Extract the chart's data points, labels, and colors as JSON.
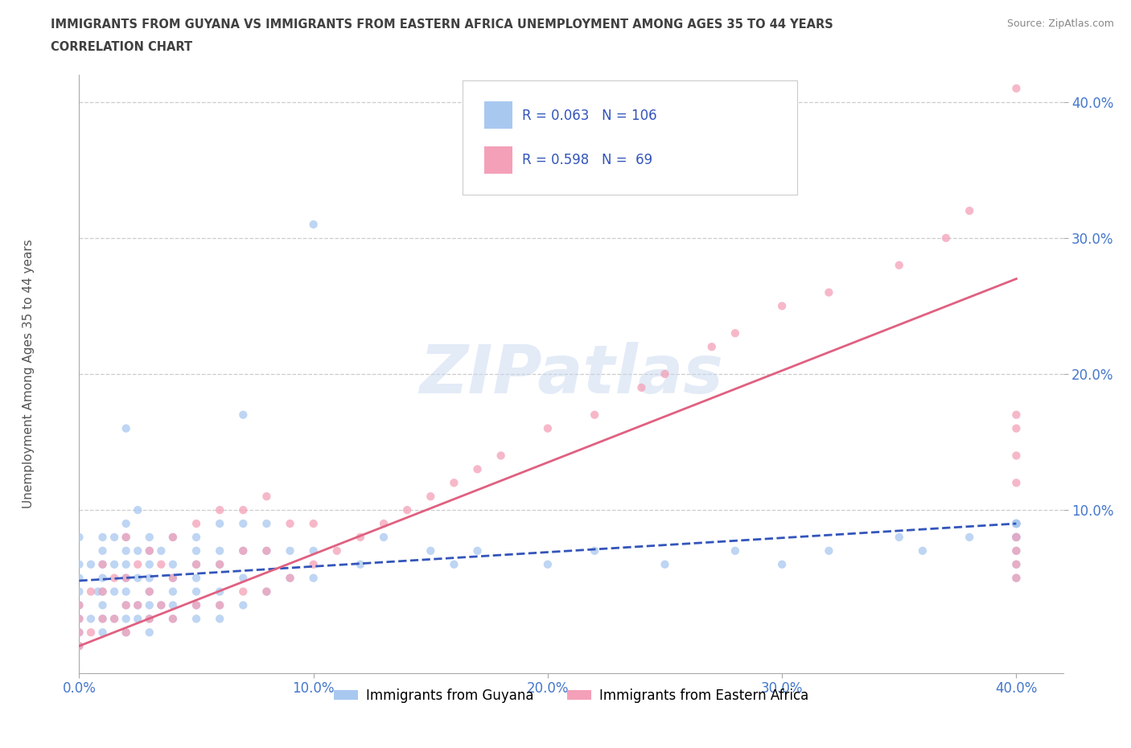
{
  "title_line1": "IMMIGRANTS FROM GUYANA VS IMMIGRANTS FROM EASTERN AFRICA UNEMPLOYMENT AMONG AGES 35 TO 44 YEARS",
  "title_line2": "CORRELATION CHART",
  "source_text": "Source: ZipAtlas.com",
  "watermark_text": "ZIPatlas",
  "ylabel": "Unemployment Among Ages 35 to 44 years",
  "xlim": [
    0.0,
    0.42
  ],
  "ylim": [
    -0.02,
    0.42
  ],
  "guyana_R": 0.063,
  "guyana_N": 106,
  "eastern_africa_R": 0.598,
  "eastern_africa_N": 69,
  "guyana_color": "#a8c8f0",
  "eastern_africa_color": "#f4a0b8",
  "guyana_line_color": "#3355bb",
  "eastern_africa_line_color": "#e06080",
  "background_color": "#ffffff",
  "title_color": "#404040",
  "tick_color": "#4477cc",
  "legend_label_guyana": "Immigrants from Guyana",
  "legend_label_eastern_africa": "Immigrants from Eastern Africa",
  "guyana_line_y0": 0.048,
  "guyana_line_y1": 0.09,
  "eastern_africa_line_y0": 0.0,
  "eastern_africa_line_y1": 0.27,
  "guyana_x": [
    0.0,
    0.0,
    0.0,
    0.0,
    0.0,
    0.0,
    0.0,
    0.0,
    0.005,
    0.005,
    0.008,
    0.01,
    0.01,
    0.01,
    0.01,
    0.01,
    0.01,
    0.01,
    0.01,
    0.015,
    0.015,
    0.015,
    0.015,
    0.02,
    0.02,
    0.02,
    0.02,
    0.02,
    0.02,
    0.02,
    0.02,
    0.02,
    0.02,
    0.025,
    0.025,
    0.025,
    0.025,
    0.025,
    0.03,
    0.03,
    0.03,
    0.03,
    0.03,
    0.03,
    0.03,
    0.03,
    0.035,
    0.035,
    0.04,
    0.04,
    0.04,
    0.04,
    0.04,
    0.04,
    0.05,
    0.05,
    0.05,
    0.05,
    0.05,
    0.05,
    0.05,
    0.06,
    0.06,
    0.06,
    0.06,
    0.06,
    0.06,
    0.07,
    0.07,
    0.07,
    0.07,
    0.07,
    0.08,
    0.08,
    0.08,
    0.09,
    0.09,
    0.1,
    0.1,
    0.1,
    0.12,
    0.13,
    0.15,
    0.16,
    0.17,
    0.2,
    0.22,
    0.25,
    0.28,
    0.3,
    0.32,
    0.35,
    0.36,
    0.38,
    0.4,
    0.4,
    0.4,
    0.4,
    0.4,
    0.4,
    0.4,
    0.4,
    0.4,
    0.4,
    0.4,
    0.4
  ],
  "guyana_y": [
    0.0,
    0.01,
    0.02,
    0.03,
    0.04,
    0.05,
    0.06,
    0.08,
    0.02,
    0.06,
    0.04,
    0.01,
    0.02,
    0.03,
    0.04,
    0.05,
    0.06,
    0.07,
    0.08,
    0.02,
    0.04,
    0.06,
    0.08,
    0.01,
    0.02,
    0.03,
    0.04,
    0.05,
    0.06,
    0.07,
    0.08,
    0.09,
    0.16,
    0.02,
    0.03,
    0.05,
    0.07,
    0.1,
    0.01,
    0.02,
    0.03,
    0.04,
    0.05,
    0.06,
    0.07,
    0.08,
    0.03,
    0.07,
    0.02,
    0.03,
    0.04,
    0.05,
    0.06,
    0.08,
    0.02,
    0.03,
    0.04,
    0.05,
    0.06,
    0.07,
    0.08,
    0.02,
    0.03,
    0.04,
    0.06,
    0.07,
    0.09,
    0.03,
    0.05,
    0.07,
    0.09,
    0.17,
    0.04,
    0.07,
    0.09,
    0.05,
    0.07,
    0.05,
    0.07,
    0.31,
    0.06,
    0.08,
    0.07,
    0.06,
    0.07,
    0.06,
    0.07,
    0.06,
    0.07,
    0.06,
    0.07,
    0.08,
    0.07,
    0.08,
    0.05,
    0.06,
    0.07,
    0.08,
    0.09,
    0.08,
    0.09,
    0.08,
    0.09,
    0.09,
    0.09,
    0.09
  ],
  "eastern_africa_x": [
    0.0,
    0.0,
    0.0,
    0.0,
    0.005,
    0.005,
    0.01,
    0.01,
    0.01,
    0.015,
    0.015,
    0.02,
    0.02,
    0.02,
    0.02,
    0.025,
    0.025,
    0.03,
    0.03,
    0.03,
    0.035,
    0.035,
    0.04,
    0.04,
    0.04,
    0.05,
    0.05,
    0.05,
    0.06,
    0.06,
    0.06,
    0.07,
    0.07,
    0.07,
    0.08,
    0.08,
    0.08,
    0.09,
    0.09,
    0.1,
    0.1,
    0.11,
    0.12,
    0.13,
    0.14,
    0.15,
    0.16,
    0.17,
    0.18,
    0.2,
    0.22,
    0.24,
    0.25,
    0.27,
    0.28,
    0.3,
    0.32,
    0.35,
    0.37,
    0.38,
    0.4,
    0.4,
    0.4,
    0.4,
    0.4,
    0.4,
    0.4,
    0.4,
    0.4
  ],
  "eastern_africa_y": [
    0.0,
    0.01,
    0.02,
    0.03,
    0.01,
    0.04,
    0.02,
    0.04,
    0.06,
    0.02,
    0.05,
    0.01,
    0.03,
    0.05,
    0.08,
    0.03,
    0.06,
    0.02,
    0.04,
    0.07,
    0.03,
    0.06,
    0.02,
    0.05,
    0.08,
    0.03,
    0.06,
    0.09,
    0.03,
    0.06,
    0.1,
    0.04,
    0.07,
    0.1,
    0.04,
    0.07,
    0.11,
    0.05,
    0.09,
    0.06,
    0.09,
    0.07,
    0.08,
    0.09,
    0.1,
    0.11,
    0.12,
    0.13,
    0.14,
    0.16,
    0.17,
    0.19,
    0.2,
    0.22,
    0.23,
    0.25,
    0.26,
    0.28,
    0.3,
    0.32,
    0.12,
    0.14,
    0.16,
    0.17,
    0.05,
    0.06,
    0.07,
    0.08,
    0.41
  ]
}
